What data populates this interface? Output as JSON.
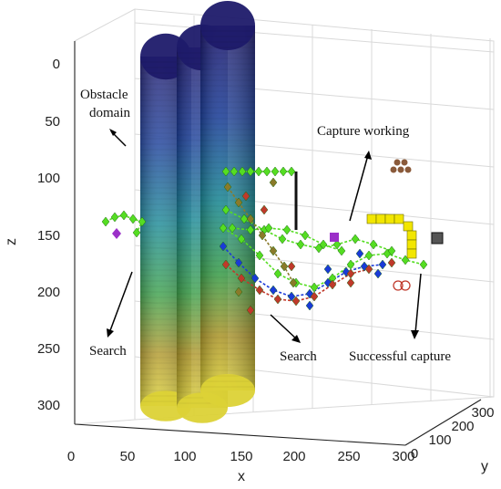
{
  "chart_data": {
    "type": "scatter3d",
    "axes": {
      "x": {
        "label": "x",
        "ticks": [
          "0",
          "50",
          "100",
          "150",
          "200",
          "250",
          "300"
        ],
        "range": [
          0,
          300
        ]
      },
      "y": {
        "label": "y",
        "ticks": [
          "0",
          "100",
          "200",
          "300"
        ],
        "range": [
          0,
          300
        ]
      },
      "z": {
        "label": "z",
        "ticks": [
          "0",
          "50",
          "100",
          "150",
          "200",
          "250",
          "300"
        ],
        "range": [
          0,
          320
        ],
        "reversed": true
      }
    },
    "grid": true,
    "annotations": [
      {
        "id": "obstacle",
        "lines": [
          "Obstacle",
          "domain"
        ]
      },
      {
        "id": "capture-working",
        "lines": [
          "Capture working"
        ]
      },
      {
        "id": "search-left",
        "lines": [
          "Search"
        ]
      },
      {
        "id": "search-mid",
        "lines": [
          "Search"
        ]
      },
      {
        "id": "successful-capture",
        "lines": [
          "Successful capture"
        ]
      }
    ],
    "obstacles": [
      {
        "x": 80,
        "z_top": -10,
        "z_bottom": 305
      },
      {
        "x": 115,
        "z_top": -20,
        "z_bottom": 305
      },
      {
        "x": 155,
        "z_top": -40,
        "z_bottom": 300
      }
    ],
    "colors": {
      "green_marker": "#55dd22",
      "red_marker": "#c0392b",
      "blue_marker": "#1a3ad8",
      "olive_marker": "#8a7a2a",
      "yellow_marker": "#f2e600",
      "purple_marker": "#9b30c8",
      "cylinder_top": "#1d1b6e",
      "cylinder_mid": "#1f8c8a",
      "cylinder_bottom": "#c8c830"
    }
  }
}
